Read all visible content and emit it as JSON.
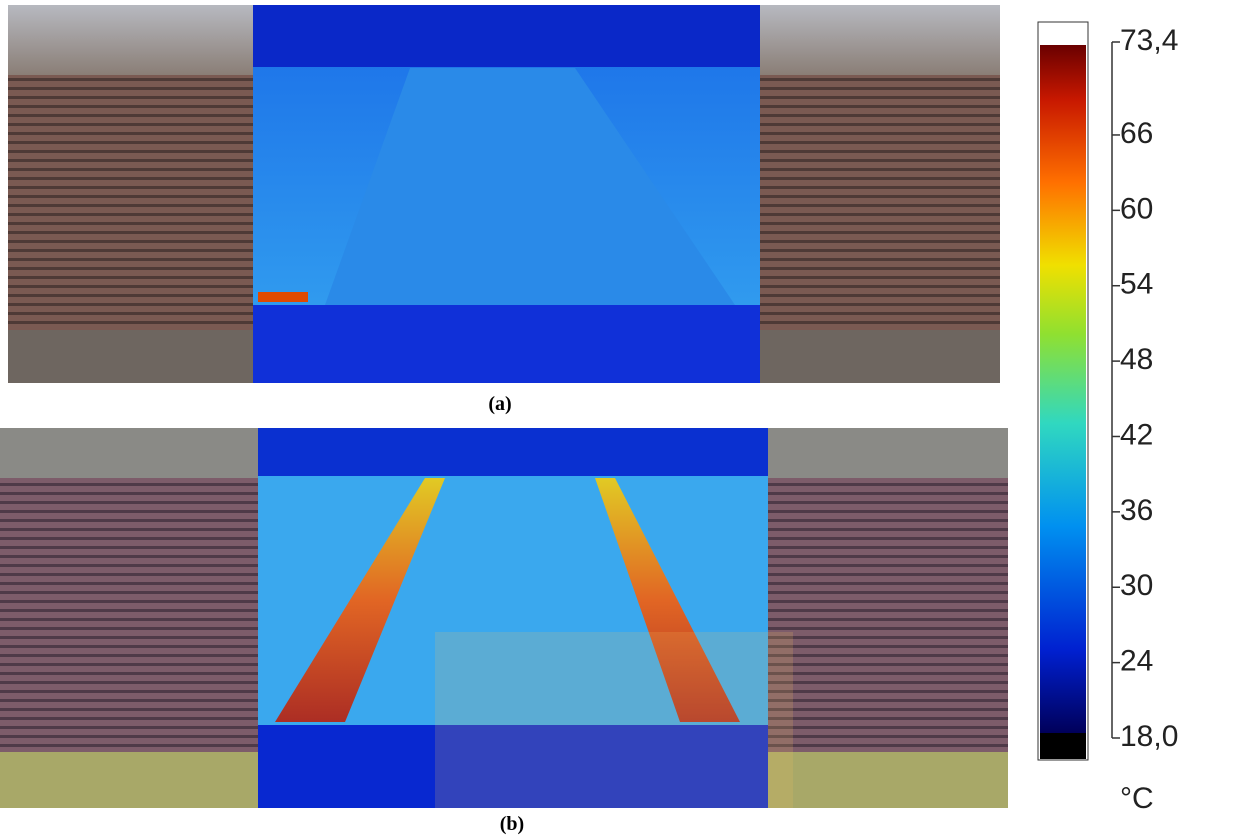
{
  "panels": [
    {
      "label": "(a)"
    },
    {
      "label": "(b)"
    }
  ],
  "colorbar": {
    "lim": [
      18.0,
      73.4
    ],
    "unit": "°C",
    "ticks": [
      {
        "value": 73.4,
        "label": "73,4"
      },
      66,
      60,
      54,
      48,
      42,
      36,
      30,
      24,
      {
        "value": 18.0,
        "label": "18,0"
      }
    ]
  }
}
